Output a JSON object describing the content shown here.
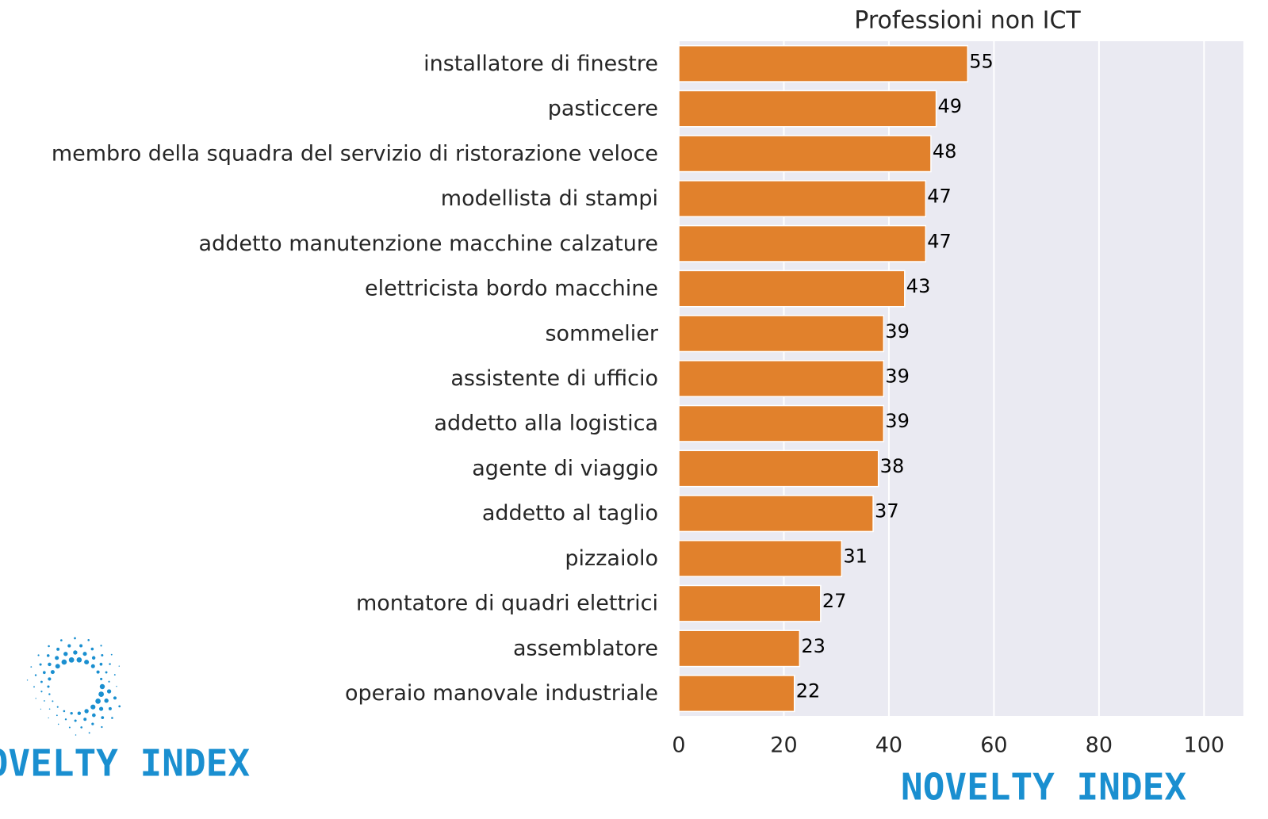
{
  "chart_data": {
    "type": "barh",
    "title": "Professioni non ICT",
    "categories": [
      "installatore di finestre",
      "pasticcere",
      "membro della squadra del servizio di ristorazione veloce",
      "modellista di stampi",
      "addetto manutenzione macchine calzature",
      "elettricista bordo macchine",
      "sommelier",
      "assistente di ufficio",
      "addetto alla logistica",
      "agente di viaggio",
      "addetto al taglio",
      "pizzaiolo",
      "montatore di quadri elettrici",
      "assemblatore",
      "operaio manovale industriale"
    ],
    "values": [
      55,
      49,
      48,
      47,
      47,
      43,
      39,
      39,
      39,
      38,
      37,
      31,
      27,
      23,
      22
    ],
    "color": "#e1812c",
    "xlim": [
      0,
      107.5
    ],
    "xticks": [
      0,
      20,
      40,
      60,
      80,
      100
    ],
    "grid": true,
    "watermark": "NOVELTY INDEX"
  }
}
